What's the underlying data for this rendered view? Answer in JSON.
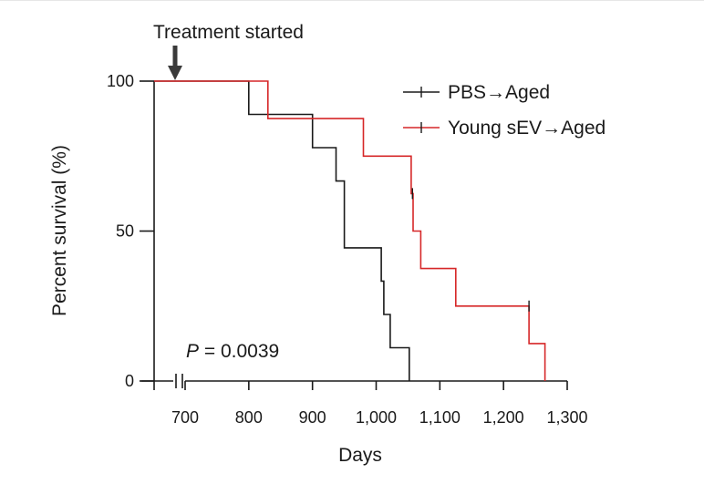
{
  "chart_data": {
    "type": "line",
    "subtype": "kaplan-meier",
    "title": "",
    "xlabel": "Days",
    "ylabel": "Percent survival (%)",
    "xlim": [
      650,
      1300
    ],
    "ylim": [
      0,
      100
    ],
    "x_axis_break": true,
    "x_ticks": [
      700,
      800,
      900,
      1000,
      1100,
      1200,
      1300
    ],
    "x_tick_labels": [
      "700",
      "800",
      "900",
      "1,000",
      "1,100",
      "1,200",
      "1,300"
    ],
    "y_ticks": [
      0,
      50,
      100
    ],
    "y_tick_labels": [
      "0",
      "50",
      "100"
    ],
    "legend_position": "top-right",
    "annotations": {
      "treatment_label": "Treatment started",
      "treatment_day": 685,
      "p_letter": "P",
      "p_value_text": " = 0.0039"
    },
    "series": [
      {
        "name": "PBS→Aged",
        "color": "#1a1a1a",
        "start_x": 650,
        "end_x": 1052,
        "steps": [
          {
            "x": 800,
            "y": 88.9
          },
          {
            "x": 900,
            "y": 77.8
          },
          {
            "x": 937,
            "y": 66.7
          },
          {
            "x": 950,
            "y": 44.4
          },
          {
            "x": 1008,
            "y": 33.3
          },
          {
            "x": 1012,
            "y": 22.2
          },
          {
            "x": 1022,
            "y": 11.1
          },
          {
            "x": 1052,
            "y": 0
          }
        ],
        "censored": []
      },
      {
        "name": "Young sEV→Aged",
        "color": "#d62728",
        "start_x": 650,
        "end_x": 1265,
        "steps": [
          {
            "x": 830,
            "y": 87.5
          },
          {
            "x": 980,
            "y": 75.0
          },
          {
            "x": 1055,
            "y": 62.5
          },
          {
            "x": 1058,
            "y": 50.0
          },
          {
            "x": 1070,
            "y": 37.5
          },
          {
            "x": 1125,
            "y": 25.0
          },
          {
            "x": 1240,
            "y": 12.5
          },
          {
            "x": 1265,
            "y": 0
          }
        ],
        "censored": [
          1057,
          1240
        ]
      }
    ]
  }
}
